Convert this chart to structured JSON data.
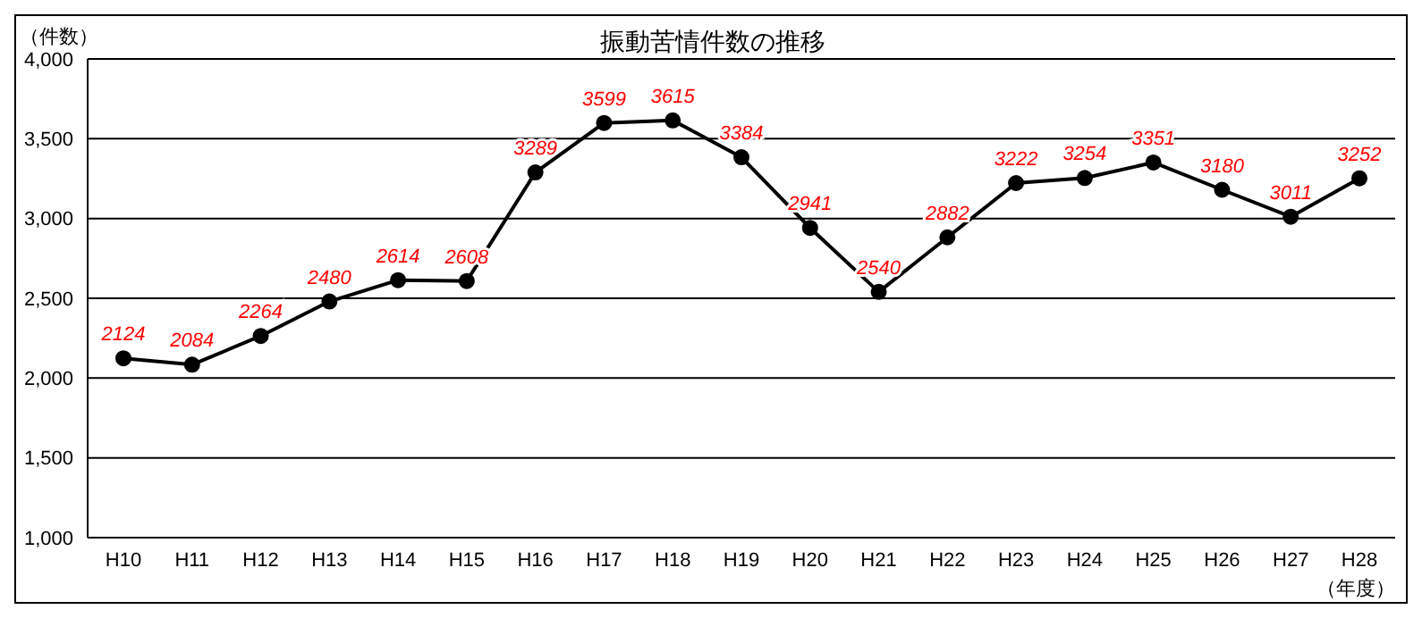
{
  "chart_data": {
    "type": "line",
    "title": "振動苦情件数の推移",
    "ylabel": "（件数）",
    "xlabel": "（年度）",
    "categories": [
      "H10",
      "H11",
      "H12",
      "H13",
      "H14",
      "H15",
      "H16",
      "H17",
      "H18",
      "H19",
      "H20",
      "H21",
      "H22",
      "H23",
      "H24",
      "H25",
      "H26",
      "H27",
      "H28"
    ],
    "series": [
      {
        "color": "#000000",
        "values": [
          2124,
          2084,
          2264,
          2480,
          2614,
          2608,
          3289,
          3599,
          3615,
          3384,
          2941,
          2540,
          2882,
          3222,
          3254,
          3351,
          3180,
          3011,
          3252
        ]
      }
    ],
    "ylim": [
      1000,
      4000
    ],
    "yticks": [
      {
        "value": 1000,
        "label": "1,000"
      },
      {
        "value": 1500,
        "label": "1,500"
      },
      {
        "value": 2000,
        "label": "2,000"
      },
      {
        "value": 2500,
        "label": "2,500"
      },
      {
        "value": 3000,
        "label": "3,000"
      },
      {
        "value": 3500,
        "label": "3,500"
      },
      {
        "value": 4000,
        "label": "4,000"
      }
    ],
    "grid": "y",
    "marker": "circle",
    "line_style": "solid",
    "data_labels": true
  }
}
